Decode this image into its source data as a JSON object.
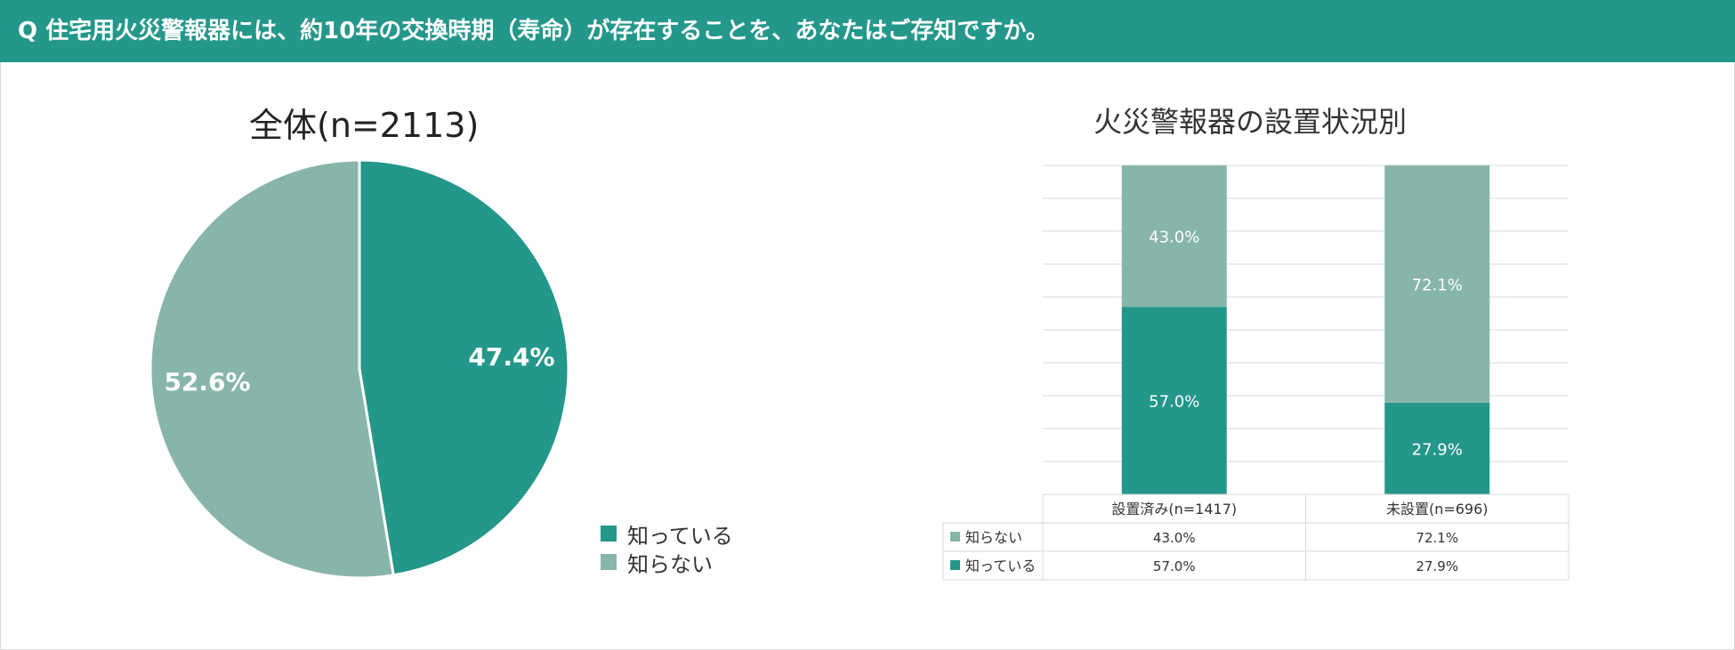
{
  "header": {
    "question": "Q 住宅用火災警報器には、約10年の交換時期（寿命）が存在することを、あなたはご存知ですか。"
  },
  "colors": {
    "know": "#23978a",
    "dont_know": "#88b5a9",
    "header_bg": "#23978a",
    "grid": "#d9d9d9"
  },
  "legend": {
    "items": [
      "知っている",
      "知らない"
    ]
  },
  "chart_data": [
    {
      "type": "pie",
      "title": "全体(n=2113)",
      "slices": [
        {
          "name": "知っている",
          "value": 47.4,
          "label": "47.4%"
        },
        {
          "name": "知らない",
          "value": 52.6,
          "label": "52.6%"
        }
      ]
    },
    {
      "type": "bar",
      "stacked": true,
      "title": "火災警報器の設置状況別",
      "categories": [
        "設置済み(n=1417)",
        "未設置(n=696)"
      ],
      "series": [
        {
          "name": "知っている",
          "values": [
            57.0,
            27.9
          ],
          "labels": [
            "57.0%",
            "27.9%"
          ]
        },
        {
          "name": "知らない",
          "values": [
            43.0,
            72.1
          ],
          "labels": [
            "43.0%",
            "72.1%"
          ]
        }
      ],
      "ylim": [
        0,
        100
      ],
      "grid": true,
      "table": {
        "rows": [
          {
            "name": "知らない",
            "cells": [
              "43.0%",
              "72.1%"
            ]
          },
          {
            "name": "知っている",
            "cells": [
              "57.0%",
              "27.9%"
            ]
          }
        ]
      }
    }
  ]
}
